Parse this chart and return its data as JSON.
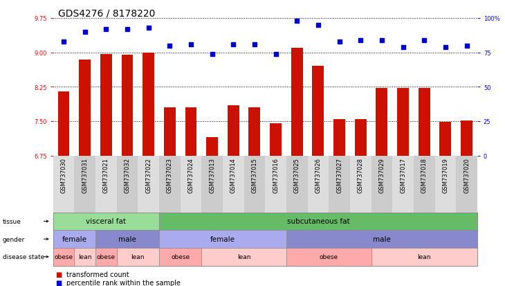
{
  "title": "GDS4276 / 8178220",
  "samples": [
    "GSM737030",
    "GSM737031",
    "GSM737021",
    "GSM737032",
    "GSM737022",
    "GSM737023",
    "GSM737024",
    "GSM737013",
    "GSM737014",
    "GSM737015",
    "GSM737016",
    "GSM737025",
    "GSM737026",
    "GSM737027",
    "GSM737028",
    "GSM737029",
    "GSM737017",
    "GSM737018",
    "GSM737019",
    "GSM737020"
  ],
  "bar_values": [
    8.15,
    8.85,
    8.97,
    8.95,
    9.0,
    7.8,
    7.8,
    7.15,
    7.85,
    7.8,
    7.45,
    9.1,
    8.7,
    7.55,
    7.55,
    8.22,
    8.22,
    8.22,
    7.48,
    7.52
  ],
  "percentile_values": [
    83,
    90,
    92,
    92,
    93,
    80,
    81,
    74,
    81,
    81,
    74,
    98,
    95,
    83,
    84,
    84,
    79,
    84,
    79,
    80
  ],
  "ylim_left": [
    6.75,
    9.75
  ],
  "yticks_left": [
    6.75,
    7.5,
    8.25,
    9.0,
    9.75
  ],
  "ylim_right": [
    0,
    100
  ],
  "yticks_right": [
    0,
    25,
    50,
    75,
    100
  ],
  "bar_color": "#CC1100",
  "scatter_color": "#0000CC",
  "bg_color": "#FFFFFF",
  "tissue_labels": [
    {
      "label": "visceral fat",
      "start": 0,
      "end": 4,
      "color": "#99DD99"
    },
    {
      "label": "subcutaneous fat",
      "start": 5,
      "end": 19,
      "color": "#66BB66"
    }
  ],
  "gender_labels": [
    {
      "label": "female",
      "start": 0,
      "end": 1,
      "color": "#AAAAEE"
    },
    {
      "label": "male",
      "start": 2,
      "end": 4,
      "color": "#8888CC"
    },
    {
      "label": "female",
      "start": 5,
      "end": 10,
      "color": "#AAAAEE"
    },
    {
      "label": "male",
      "start": 11,
      "end": 19,
      "color": "#8888CC"
    }
  ],
  "disease_labels": [
    {
      "label": "obese",
      "start": 0,
      "end": 0,
      "color": "#FFAAAA"
    },
    {
      "label": "lean",
      "start": 1,
      "end": 1,
      "color": "#FFCCCC"
    },
    {
      "label": "obese",
      "start": 2,
      "end": 2,
      "color": "#FFAAAA"
    },
    {
      "label": "lean",
      "start": 3,
      "end": 4,
      "color": "#FFCCCC"
    },
    {
      "label": "obese",
      "start": 5,
      "end": 6,
      "color": "#FFAAAA"
    },
    {
      "label": "lean",
      "start": 7,
      "end": 10,
      "color": "#FFCCCC"
    },
    {
      "label": "obese",
      "start": 11,
      "end": 14,
      "color": "#FFAAAA"
    },
    {
      "label": "lean",
      "start": 15,
      "end": 19,
      "color": "#FFCCCC"
    }
  ],
  "legend_bar_label": "transformed count",
  "legend_scatter_label": "percentile rank within the sample",
  "row_labels": [
    "tissue",
    "gender",
    "disease state"
  ],
  "title_fontsize": 10,
  "tick_fontsize": 6,
  "annot_fontsize": 7
}
